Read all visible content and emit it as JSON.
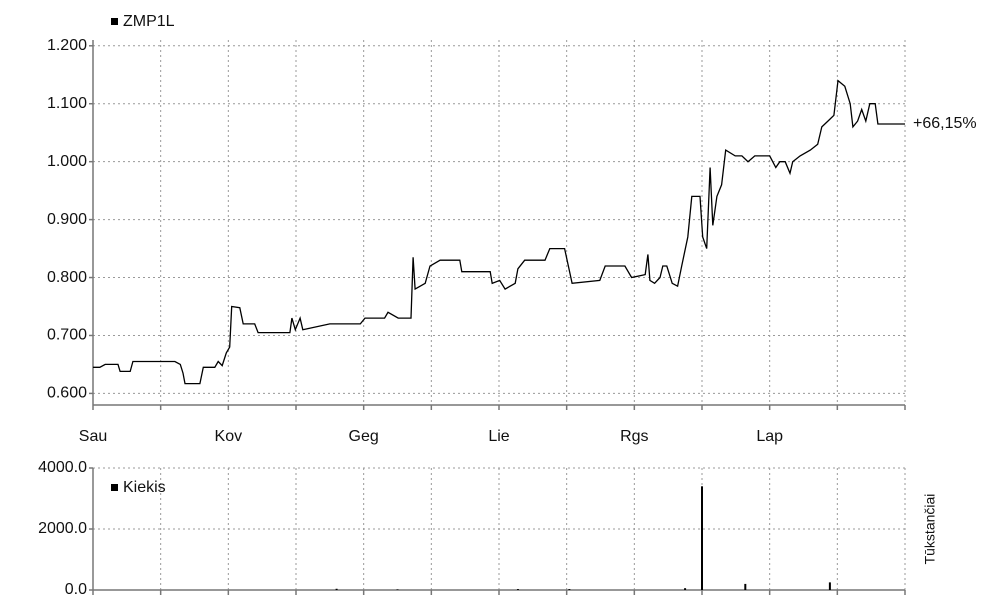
{
  "chart_data": [
    {
      "type": "line",
      "x": [
        0,
        0.1,
        0.18,
        0.37,
        0.4,
        0.55,
        0.59,
        1.21,
        1.29,
        1.33,
        1.36,
        1.58,
        1.63,
        1.8,
        1.85,
        1.91,
        1.97,
        2.02,
        2.05,
        2.17,
        2.22,
        2.39,
        2.44,
        2.91,
        2.94,
        2.99,
        3.06,
        3.1,
        3.5,
        3.95,
        4.02,
        4.31,
        4.36,
        4.51,
        4.7,
        4.73,
        4.76,
        4.91,
        4.98,
        5.13,
        5.42,
        5.45,
        5.87,
        5.9,
        6.01,
        6.09,
        6.24,
        6.28,
        6.38,
        6.68,
        6.75,
        6.97,
        7.08,
        7.49,
        7.57,
        7.86,
        7.96,
        8.16,
        8.2,
        8.23,
        8.3,
        8.38,
        8.42,
        8.48,
        8.56,
        8.64,
        8.7,
        8.79,
        8.85,
        8.97,
        9.01,
        9.07,
        9.12,
        9.16,
        9.22,
        9.29,
        9.35,
        9.49,
        9.59,
        9.68,
        9.78,
        10.0,
        10.09,
        10.15,
        10.23,
        10.3,
        10.34,
        10.45,
        10.6,
        10.71,
        10.77,
        10.86,
        10.95,
        11.01,
        11.11,
        11.19,
        11.23,
        11.3,
        11.36,
        11.42,
        11.48,
        11.56,
        11.6,
        12.0
      ],
      "series": [
        {
          "name": "ZMP1L",
          "color": "#000000",
          "values": [
            0.645,
            0.645,
            0.65,
            0.65,
            0.638,
            0.638,
            0.655,
            0.655,
            0.65,
            0.635,
            0.617,
            0.617,
            0.645,
            0.645,
            0.655,
            0.648,
            0.67,
            0.68,
            0.75,
            0.748,
            0.72,
            0.72,
            0.705,
            0.705,
            0.73,
            0.71,
            0.73,
            0.71,
            0.72,
            0.72,
            0.73,
            0.73,
            0.74,
            0.73,
            0.73,
            0.835,
            0.78,
            0.79,
            0.82,
            0.83,
            0.83,
            0.81,
            0.81,
            0.79,
            0.795,
            0.78,
            0.79,
            0.815,
            0.83,
            0.83,
            0.85,
            0.85,
            0.79,
            0.795,
            0.82,
            0.82,
            0.8,
            0.805,
            0.84,
            0.795,
            0.79,
            0.8,
            0.82,
            0.82,
            0.79,
            0.785,
            0.82,
            0.87,
            0.94,
            0.94,
            0.87,
            0.85,
            0.99,
            0.89,
            0.94,
            0.96,
            1.02,
            1.01,
            1.01,
            1.0,
            1.01,
            1.01,
            0.99,
            1.0,
            1.0,
            0.98,
            1.0,
            1.01,
            1.02,
            1.03,
            1.06,
            1.07,
            1.08,
            1.14,
            1.13,
            1.1,
            1.06,
            1.07,
            1.09,
            1.07,
            1.1,
            1.1,
            1.065,
            1.065
          ]
        }
      ],
      "annotation": "+66,15%",
      "xlim": [
        0,
        12
      ],
      "xticks": [
        {
          "value": 0,
          "label": "Sau"
        },
        {
          "value": 1,
          "label": null
        },
        {
          "value": 2,
          "label": "Kov"
        },
        {
          "value": 3,
          "label": null
        },
        {
          "value": 4,
          "label": "Geg"
        },
        {
          "value": 5,
          "label": null
        },
        {
          "value": 6,
          "label": "Lie"
        },
        {
          "value": 7,
          "label": null
        },
        {
          "value": 8,
          "label": "Rgs"
        },
        {
          "value": 9,
          "label": null
        },
        {
          "value": 10,
          "label": "Lap"
        },
        {
          "value": 11,
          "label": null
        },
        {
          "value": 12,
          "label": null
        }
      ],
      "ylim": [
        0.58,
        1.21
      ],
      "yticks": [
        {
          "value": 0.6,
          "label": "0.600"
        },
        {
          "value": 0.7,
          "label": "0.700"
        },
        {
          "value": 0.8,
          "label": "0.800"
        },
        {
          "value": 0.9,
          "label": "0.900"
        },
        {
          "value": 1.0,
          "label": "1.000"
        },
        {
          "value": 1.1,
          "label": "1.100"
        },
        {
          "value": 1.2,
          "label": "1.200"
        }
      ],
      "grid": true
    },
    {
      "type": "bar",
      "x": [
        3.6,
        4.5,
        6.28,
        7.04,
        8.75,
        9.0,
        9.64,
        10.89
      ],
      "series": [
        {
          "name": "Kiekis",
          "color": "#000000",
          "values": [
            40,
            20,
            30,
            30,
            60,
            3400,
            200,
            250
          ]
        }
      ],
      "ylabel": "Tūkstančiai",
      "xlim": [
        0,
        12
      ],
      "xticks": [
        {
          "value": 0,
          "label": null
        },
        {
          "value": 1,
          "label": null
        },
        {
          "value": 2,
          "label": null
        },
        {
          "value": 3,
          "label": null
        },
        {
          "value": 4,
          "label": null
        },
        {
          "value": 5,
          "label": null
        },
        {
          "value": 6,
          "label": null
        },
        {
          "value": 7,
          "label": null
        },
        {
          "value": 8,
          "label": null
        },
        {
          "value": 9,
          "label": null
        },
        {
          "value": 10,
          "label": null
        },
        {
          "value": 11,
          "label": null
        },
        {
          "value": 12,
          "label": null
        }
      ],
      "ylim": [
        0,
        4000
      ],
      "yticks": [
        {
          "value": 0,
          "label": "0.0"
        },
        {
          "value": 2000,
          "label": "2000.0"
        },
        {
          "value": 4000,
          "label": "4000.0"
        }
      ],
      "grid": true
    }
  ]
}
